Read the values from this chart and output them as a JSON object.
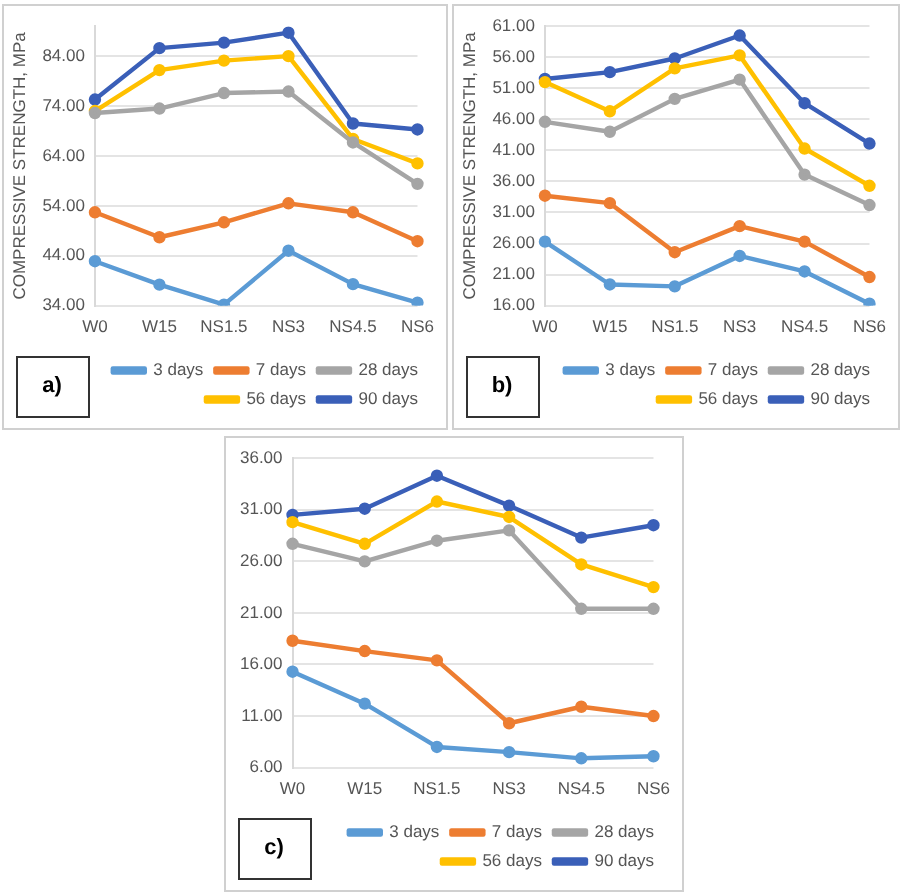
{
  "chart_data": [
    {
      "type": "line",
      "ylabel": "COMPRESSIVE STRENGTH, MPa",
      "categories": [
        "W0",
        "W15",
        "NS1.5",
        "NS3",
        "NS4.5",
        "NS6"
      ],
      "ylim": [
        34,
        90
      ],
      "yticks": [
        {
          "value": 34,
          "label": "34.00"
        },
        {
          "value": 44,
          "label": "44.00"
        },
        {
          "value": 54,
          "label": "54.00"
        },
        {
          "value": 64,
          "label": "64.00"
        },
        {
          "value": 74,
          "label": "74.00"
        },
        {
          "value": 84,
          "label": "84.00"
        }
      ],
      "grid": "y",
      "legend": "bottom",
      "marker": "circle",
      "line_style": "solid",
      "annotations": [
        "a)"
      ],
      "series": [
        {
          "name": "3 days",
          "color": "#5b9bd5",
          "values": [
            42.9,
            38.2,
            34.2,
            45.0,
            38.3,
            34.6
          ]
        },
        {
          "name": "7 days",
          "color": "#ed7d31",
          "values": [
            52.7,
            47.7,
            50.7,
            54.5,
            52.7,
            46.9
          ]
        },
        {
          "name": "28 days",
          "color": "#a5a5a5",
          "values": [
            72.6,
            73.5,
            76.6,
            76.9,
            66.7,
            58.4
          ]
        },
        {
          "name": "56 days",
          "color": "#ffc000",
          "values": [
            73.0,
            81.2,
            83.1,
            84.0,
            67.4,
            62.5
          ]
        },
        {
          "name": "90 days",
          "color": "#3a5fb8",
          "values": [
            75.3,
            85.6,
            86.7,
            88.7,
            70.5,
            69.3
          ]
        }
      ]
    },
    {
      "type": "line",
      "ylabel": "COMPRESSIVE STRENGTH, MPa",
      "categories": [
        "W0",
        "W15",
        "NS1.5",
        "NS3",
        "NS4.5",
        "NS6"
      ],
      "ylim": [
        16,
        61
      ],
      "yticks": [
        {
          "value": 16,
          "label": "16.00"
        },
        {
          "value": 21,
          "label": "21.00"
        },
        {
          "value": 26,
          "label": "26.00"
        },
        {
          "value": 31,
          "label": "31.00"
        },
        {
          "value": 36,
          "label": "36.00"
        },
        {
          "value": 41,
          "label": "41.00"
        },
        {
          "value": 46,
          "label": "46.00"
        },
        {
          "value": 51,
          "label": "51.00"
        },
        {
          "value": 56,
          "label": "56.00"
        },
        {
          "value": 61,
          "label": "61.00"
        }
      ],
      "grid": "y",
      "legend": "bottom",
      "marker": "circle",
      "line_style": "solid",
      "annotations": [
        "b)"
      ],
      "series": [
        {
          "name": "3 days",
          "color": "#5b9bd5",
          "values": [
            26.3,
            19.4,
            19.1,
            24.0,
            21.5,
            16.3
          ]
        },
        {
          "name": "7 days",
          "color": "#ed7d31",
          "values": [
            33.7,
            32.5,
            24.6,
            28.8,
            26.3,
            20.6
          ]
        },
        {
          "name": "28 days",
          "color": "#a5a5a5",
          "values": [
            45.6,
            44.0,
            49.3,
            52.4,
            37.1,
            32.2
          ]
        },
        {
          "name": "56 days",
          "color": "#ffc000",
          "values": [
            52.0,
            47.3,
            54.2,
            56.3,
            41.3,
            35.3
          ]
        },
        {
          "name": "90 days",
          "color": "#3a5fb8",
          "values": [
            52.5,
            53.6,
            55.8,
            59.5,
            48.6,
            42.1
          ]
        }
      ]
    },
    {
      "type": "line",
      "categories": [
        "W0",
        "W15",
        "NS1.5",
        "NS3",
        "NS4.5",
        "NS6"
      ],
      "ylim": [
        6,
        36
      ],
      "yticks": [
        {
          "value": 6,
          "label": "6.00"
        },
        {
          "value": 11,
          "label": "11.00"
        },
        {
          "value": 16,
          "label": "16.00"
        },
        {
          "value": 21,
          "label": "21.00"
        },
        {
          "value": 26,
          "label": "26.00"
        },
        {
          "value": 31,
          "label": "31.00"
        },
        {
          "value": 36,
          "label": "36.00"
        }
      ],
      "grid": "y",
      "legend": "bottom",
      "marker": "circle",
      "line_style": "solid",
      "annotations": [
        "c)"
      ],
      "series": [
        {
          "name": "3 days",
          "color": "#5b9bd5",
          "values": [
            15.3,
            12.2,
            8.0,
            7.5,
            6.9,
            7.1
          ]
        },
        {
          "name": "7 days",
          "color": "#ed7d31",
          "values": [
            18.3,
            17.3,
            16.4,
            10.3,
            11.9,
            11.0
          ]
        },
        {
          "name": "28 days",
          "color": "#a5a5a5",
          "values": [
            27.7,
            26.0,
            28.0,
            29.0,
            21.4,
            21.4
          ]
        },
        {
          "name": "56 days",
          "color": "#ffc000",
          "values": [
            29.8,
            27.7,
            31.8,
            30.3,
            25.7,
            23.5
          ]
        },
        {
          "name": "90 days",
          "color": "#3a5fb8",
          "values": [
            30.5,
            31.1,
            34.3,
            31.4,
            28.3,
            29.5
          ]
        }
      ]
    }
  ]
}
